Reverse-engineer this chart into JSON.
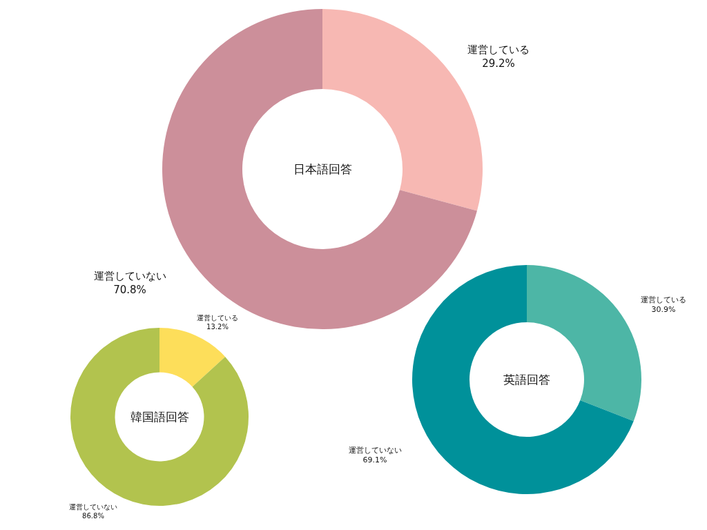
{
  "chart_data": [
    {
      "type": "donut",
      "title": "日本語回答",
      "categories": [
        "運営している",
        "運営していない"
      ],
      "values": [
        29.2,
        70.8
      ],
      "value_labels": [
        "29.2%",
        "70.8%"
      ],
      "colors": [
        "#f7b8b3",
        "#cc8f9a"
      ]
    },
    {
      "type": "donut",
      "title": "英語回答",
      "categories": [
        "運営している",
        "運営していない"
      ],
      "values": [
        30.9,
        69.1
      ],
      "value_labels": [
        "30.9%",
        "69.1%"
      ],
      "colors": [
        "#4db6a6",
        "#00919a"
      ]
    },
    {
      "type": "donut",
      "title": "韓国語回答",
      "categories": [
        "運営している",
        "運営していない"
      ],
      "values": [
        13.2,
        86.8
      ],
      "value_labels": [
        "13.2%",
        "86.8%"
      ],
      "colors": [
        "#fdde5a",
        "#b2c34e"
      ]
    }
  ]
}
